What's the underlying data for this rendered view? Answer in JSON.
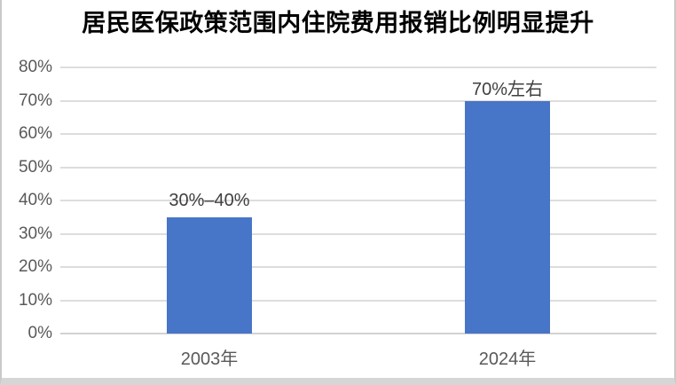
{
  "page": {
    "background": "#ffffff",
    "border_color": "#c9c9c9",
    "bottom_shadow_color": "#d6d6d6"
  },
  "chart_data": {
    "type": "bar",
    "title": "居民医保政策范围内住院费用报销比例明显提升",
    "categories": [
      "2003年",
      "2024年"
    ],
    "values": [
      35,
      70
    ],
    "data_labels": [
      "30%–40%",
      "70%左右"
    ],
    "xlabel": "",
    "ylabel": "",
    "ylim": [
      0,
      80
    ],
    "yticks": [
      0,
      10,
      20,
      30,
      40,
      50,
      60,
      70,
      80
    ],
    "ytick_labels": [
      "0%",
      "10%",
      "20%",
      "30%",
      "40%",
      "50%",
      "60%",
      "70%",
      "80%"
    ],
    "grid": true,
    "legend": false,
    "bar_color": "#4775C7",
    "gridline_color": "#dddddd",
    "axis_label_color": "#595959",
    "data_label_color": "#3f3f3f",
    "title_color": "#000000"
  }
}
